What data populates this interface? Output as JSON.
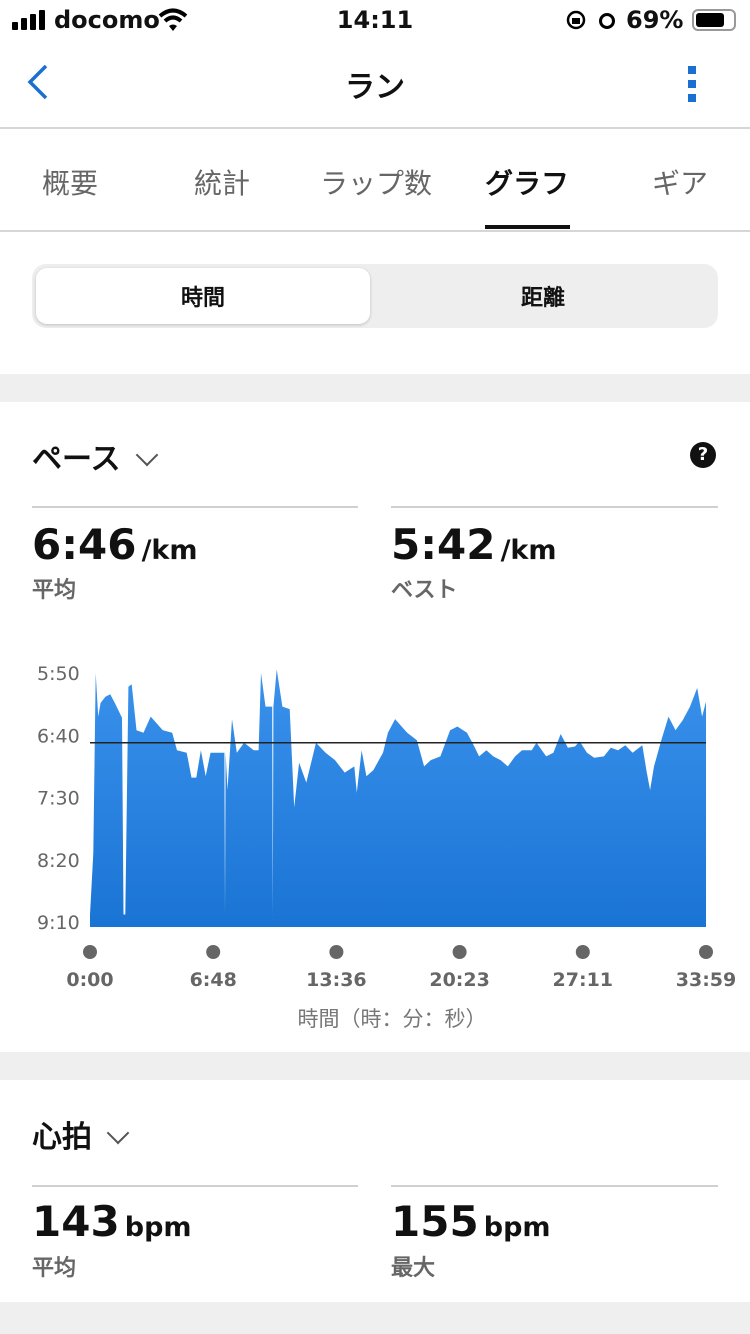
{
  "status_bar": {
    "carrier": "docomo",
    "time": "14:11",
    "battery": "69%"
  },
  "nav": {
    "title": "ラン",
    "back_icon": "chevron-left-icon",
    "menu_icon": "kebab-icon"
  },
  "tabs": [
    {
      "label": "概要"
    },
    {
      "label": "統計"
    },
    {
      "label": "ラップ数"
    },
    {
      "label": "グラフ",
      "active": true
    },
    {
      "label": "ギア"
    }
  ],
  "segment": {
    "options": [
      "時間",
      "距離"
    ],
    "selected": "時間"
  },
  "pace": {
    "title": "ペース",
    "avg_value": "6:46",
    "avg_unit": "/km",
    "avg_label": "平均",
    "best_value": "5:42",
    "best_unit": "/km",
    "best_label": "ベスト"
  },
  "heart": {
    "title": "心拍",
    "avg_value": "143",
    "avg_unit": "bpm",
    "avg_label": "平均",
    "max_value": "155",
    "max_unit": "bpm",
    "max_label": "最大"
  },
  "colors": {
    "accent": "#1a6fd1",
    "chart_top": "#3a92ec",
    "chart_bottom": "#1a74d4"
  },
  "chart_data": {
    "type": "area",
    "xlabel": "時間（時：分：秒）",
    "x_unit": "seconds",
    "y_unit": "pace seconds per km",
    "y_inverted": true,
    "ylim": [
      350,
      550
    ],
    "xlim": [
      0,
      2039
    ],
    "y_ticks": [
      "5:50",
      "6:40",
      "7:30",
      "8:20",
      "9:10"
    ],
    "x_ticks": [
      "0:00",
      "6:48",
      "13:36",
      "20:23",
      "27:11",
      "33:59"
    ],
    "average_line": 406,
    "x": [
      0,
      11,
      19,
      27,
      35,
      51,
      67,
      82,
      106,
      111,
      117,
      127,
      138,
      154,
      177,
      201,
      241,
      272,
      288,
      320,
      336,
      352,
      367,
      383,
      399,
      431,
      445,
      447,
      449,
      455,
      470,
      486,
      510,
      542,
      558,
      566,
      581,
      603,
      605,
      607,
      618,
      637,
      661,
      676,
      692,
      716,
      748,
      780,
      811,
      843,
      875,
      883,
      899,
      915,
      938,
      970,
      986,
      1010,
      1050,
      1082,
      1106,
      1128,
      1160,
      1192,
      1216,
      1248,
      1272,
      1288,
      1312,
      1335,
      1359,
      1383,
      1407,
      1430,
      1462,
      1478,
      1510,
      1534,
      1558,
      1582,
      1605,
      1621,
      1645,
      1669,
      1701,
      1724,
      1748,
      1772,
      1796,
      1828,
      1843,
      1854,
      1867,
      1891,
      1915,
      1938,
      1962,
      1986,
      2010,
      2026,
      2039
    ],
    "y": [
      544,
      495,
      350,
      385,
      374,
      369,
      367,
      374,
      386,
      544,
      544,
      361,
      359,
      396,
      398,
      385,
      396,
      398,
      412,
      414,
      434,
      434,
      412,
      433,
      414,
      414,
      414,
      544,
      414,
      444,
      387,
      414,
      406,
      412,
      412,
      350,
      377,
      377,
      544,
      377,
      347,
      377,
      379,
      458,
      422,
      438,
      406,
      414,
      420,
      430,
      425,
      446,
      412,
      433,
      428,
      414,
      398,
      387,
      398,
      404,
      425,
      420,
      417,
      396,
      393,
      398,
      409,
      417,
      412,
      417,
      420,
      425,
      417,
      412,
      412,
      406,
      417,
      414,
      399,
      410,
      409,
      405,
      414,
      418,
      417,
      410,
      412,
      408,
      414,
      408,
      430,
      444,
      425,
      404,
      385,
      396,
      388,
      377,
      362,
      385,
      373
    ]
  }
}
